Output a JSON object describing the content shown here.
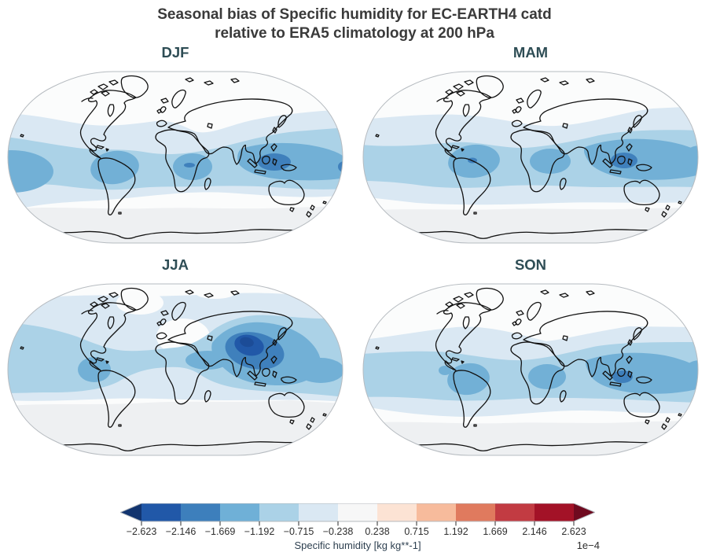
{
  "figure": {
    "title_line1": "Seasonal bias of Specific humidity for EC-EARTH4 catd",
    "title_line2": "relative to ERA5 climatology at 200 hPa"
  },
  "panels": [
    {
      "id": "djf",
      "label": "DJF"
    },
    {
      "id": "mam",
      "label": "MAM"
    },
    {
      "id": "jja",
      "label": "JJA"
    },
    {
      "id": "son",
      "label": "SON"
    }
  ],
  "colorbar": {
    "label": "Specific humidity [kg kg**-1]",
    "offset_text": "1e−4",
    "tick_labels": [
      "−2.623",
      "−2.146",
      "−1.669",
      "−1.192",
      "−0.715",
      "−0.238",
      "0.238",
      "0.715",
      "1.192",
      "1.669",
      "2.146",
      "2.623"
    ],
    "segment_colors": [
      "#2158a8",
      "#3d7fbc",
      "#6fb0d7",
      "#abd2e7",
      "#dae8f3",
      "#f7f7f7",
      "#fce3d4",
      "#f7bb9c",
      "#e07a5e",
      "#c23b42",
      "#a31227"
    ],
    "arrow_left_color": "#12346f",
    "arrow_right_color": "#6f0a1f",
    "outline_color": "#b4b9be",
    "tick_color": "#2b2b2b"
  },
  "map_style": {
    "background": "#fbfcfc",
    "polar_gray": "#eef0f2",
    "level_light": "#dae8f3",
    "level_medium": "#abd2e7",
    "level_strong": "#72b0d6",
    "level_dark": "#3f80bc",
    "level_darker": "#2158a8",
    "level_darkest": "#1c4c97",
    "coast_color": "#111111",
    "outline_color": "#b6bbc0"
  },
  "chart_data": {
    "type": "heatmap",
    "subtype": "filled-contour global maps (Robinson projection), 2x2 seasonal panels",
    "title": "Seasonal bias of Specific humidity for EC-EARTH4 catd relative to ERA5 climatology at 200 hPa",
    "variable": "Specific humidity bias",
    "units": "kg kg**-1",
    "scale_factor": 0.0001,
    "pressure_level_hPa": 200,
    "model": "EC-EARTH4 catd",
    "reference": "ERA5 climatology",
    "panels": [
      "DJF",
      "MAM",
      "JJA",
      "SON"
    ],
    "contour_levels_scaled_by_1e-4": [
      -2.623,
      -2.146,
      -1.669,
      -1.192,
      -0.715,
      -0.238,
      0.238,
      0.715,
      1.192,
      1.669,
      2.146,
      2.623
    ],
    "colormap": "diverging blue-white-red (RdBu-like), triangular extensions on both ends; only negative (blue) values occur on the maps",
    "legend_position": "horizontal colorbar at bottom center",
    "panel_features": [
      {
        "season": "DJF",
        "description": "Negative bias band across the tropics (≈ −0.7 to −1.7e−4); strongest cores ≈ −1.7 to −2.1e−4 over the Maritime Continent / western Pacific, Amazonia and equatorial Africa; near-zero at mid and high latitudes."
      },
      {
        "season": "MAM",
        "description": "Broad tropical negative band from ~40N to ~45S; cores ≈ −1.7 to −2.1e−4 over Amazonia, equatorial Africa and the Indian Ocean through the Maritime Continent."
      },
      {
        "season": "JJA",
        "description": "Strongest season: deep negative core (beyond −2.1e−4) centered over South Asia / Tibetan Plateau / Bay of Bengal; widespread negative bias over most of the Northern Hemisphere; Southern Hemisphere extratropics near zero."
      },
      {
        "season": "SON",
        "description": "Tropical negative band with cores ≈ −1.7 to −2.1e−4 over Amazonia, equatorial Africa, and the Indian Ocean–Maritime Continent; small core near Panama."
      }
    ]
  }
}
